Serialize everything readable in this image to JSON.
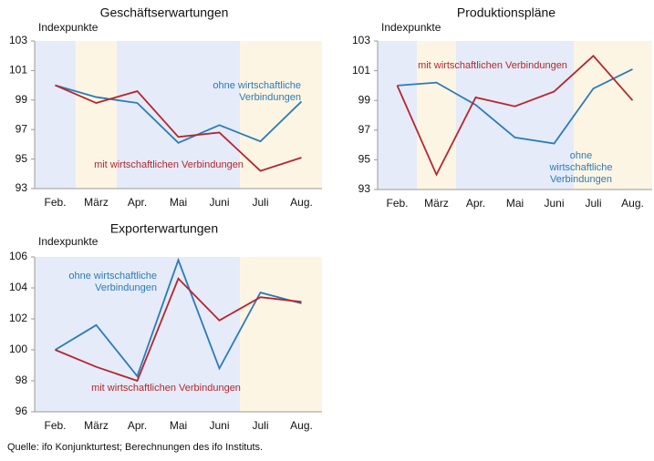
{
  "chart_data": [
    {
      "type": "line",
      "title": "Geschäftserwartungen",
      "ylabel": "Indexpunkte",
      "categories": [
        "Feb.",
        "März",
        "Apr.",
        "Mai",
        "Juni",
        "Juli",
        "Aug."
      ],
      "band_colors": [
        "#e5ebf8",
        "#fdf5e4",
        "#e5ebf8",
        "#e5ebf8",
        "#e5ebf8",
        "#fdf5e4",
        "#fdf5e4"
      ],
      "ylim": [
        93,
        103
      ],
      "yticks": [
        93,
        95,
        97,
        99,
        101,
        103
      ],
      "series": [
        {
          "name": "ohne wirtschaftliche\nVerbindungen",
          "color": "#2b7bba",
          "values": [
            100,
            99.2,
            98.8,
            96.1,
            97.3,
            96.2,
            98.9
          ]
        },
        {
          "name": "mit wirtschaftlichen Verbindungen",
          "color": "#b5272d",
          "values": [
            100,
            98.8,
            99.6,
            96.5,
            96.8,
            94.2,
            95.1
          ]
        }
      ]
    },
    {
      "type": "line",
      "title": "Produktionspläne",
      "ylabel": "Indexpunkte",
      "categories": [
        "Feb.",
        "März",
        "Apr.",
        "Mai",
        "Juni",
        "Juli",
        "Aug."
      ],
      "band_colors": [
        "#e5ebf8",
        "#fdf5e4",
        "#e5ebf8",
        "#e5ebf8",
        "#e5ebf8",
        "#fdf5e4",
        "#fdf5e4"
      ],
      "ylim": [
        93,
        103
      ],
      "yticks": [
        93,
        95,
        97,
        99,
        101,
        103
      ],
      "series": [
        {
          "name": "ohne wirtschaftliche\nVerbindungen",
          "color": "#2b7bba",
          "values": [
            100,
            100.2,
            98.7,
            96.5,
            96.1,
            99.8,
            101.1
          ]
        },
        {
          "name": "mit wirtschaftlichen Verbindungen",
          "color": "#b5272d",
          "values": [
            100,
            94.0,
            99.2,
            98.6,
            99.6,
            102.0,
            99.0
          ]
        }
      ]
    },
    {
      "type": "line",
      "title": "Exporterwartungen",
      "ylabel": "Indexpunkte",
      "categories": [
        "Feb.",
        "März",
        "Apr.",
        "Mai",
        "Juni",
        "Juli",
        "Aug."
      ],
      "band_colors": [
        "#e5ebf8",
        "#e5ebf8",
        "#e5ebf8",
        "#e5ebf8",
        "#e5ebf8",
        "#fdf5e4",
        "#fdf5e4"
      ],
      "ylim": [
        96,
        106
      ],
      "yticks": [
        96,
        98,
        100,
        102,
        104,
        106
      ],
      "series": [
        {
          "name": "ohne wirtschaftliche\nVerbindungen",
          "color": "#2b7bba",
          "values": [
            100,
            101.6,
            98.3,
            105.8,
            98.8,
            103.7,
            103.0
          ]
        },
        {
          "name": "mit wirtschaftlichen Verbindungen",
          "color": "#b5272d",
          "values": [
            100,
            98.9,
            98.0,
            104.6,
            101.9,
            103.4,
            103.1
          ]
        }
      ]
    }
  ],
  "source": "Quelle: ifo Konjunkturtest; Berechnungen des ifo Instituts."
}
